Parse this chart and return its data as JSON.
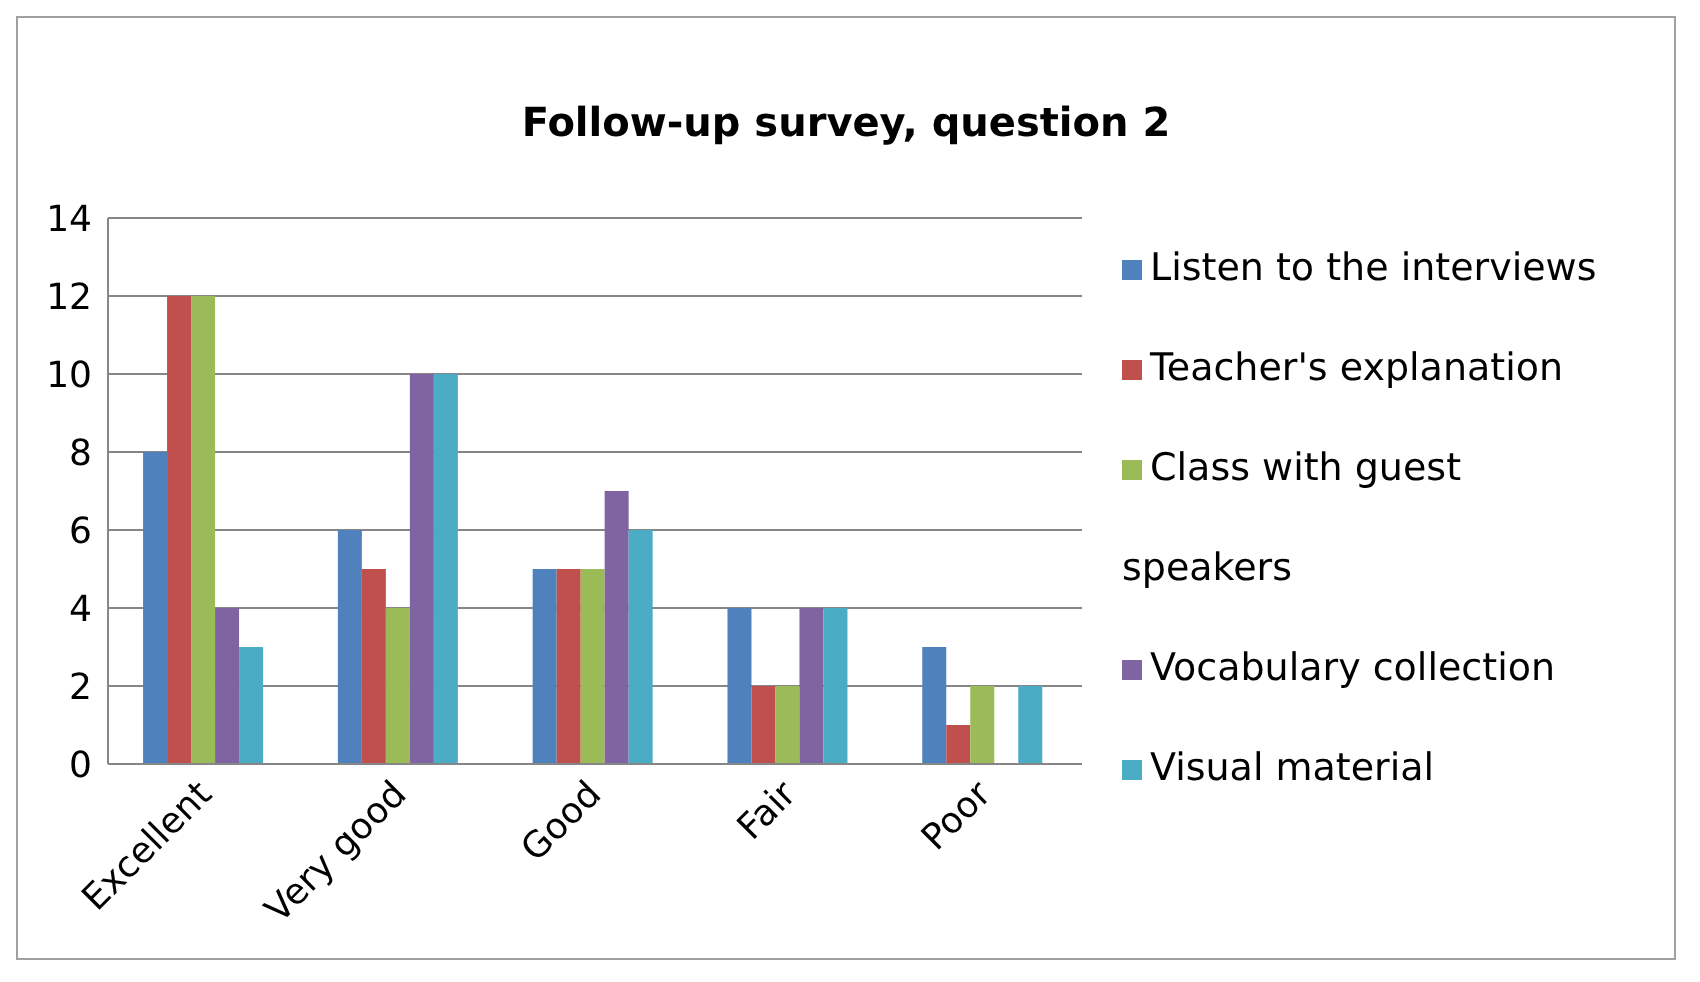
{
  "chart_data": {
    "type": "bar",
    "title": "Follow-up survey, question 2",
    "categories": [
      "Excellent",
      "Very good",
      "Good",
      "Fair",
      "Poor"
    ],
    "series": [
      {
        "name": "Listen to the interviews",
        "color": "#4f81bd",
        "values": [
          8,
          6,
          5,
          4,
          3
        ]
      },
      {
        "name": "Teacher's explanation",
        "color": "#c0504d",
        "values": [
          12,
          5,
          5,
          2,
          1
        ]
      },
      {
        "name": "Class with guest speakers",
        "color": "#9bbb59",
        "values": [
          12,
          4,
          5,
          2,
          2
        ]
      },
      {
        "name": "Vocabulary collection",
        "color": "#8064a2",
        "values": [
          4,
          10,
          7,
          4,
          0
        ]
      },
      {
        "name": "Visual material",
        "color": "#4bacc6",
        "values": [
          3,
          10,
          6,
          4,
          2
        ]
      }
    ],
    "ylim": [
      0,
      14
    ],
    "yticks": [
      0,
      2,
      4,
      6,
      8,
      10,
      12,
      14
    ],
    "grid": "y",
    "legend": "right"
  }
}
